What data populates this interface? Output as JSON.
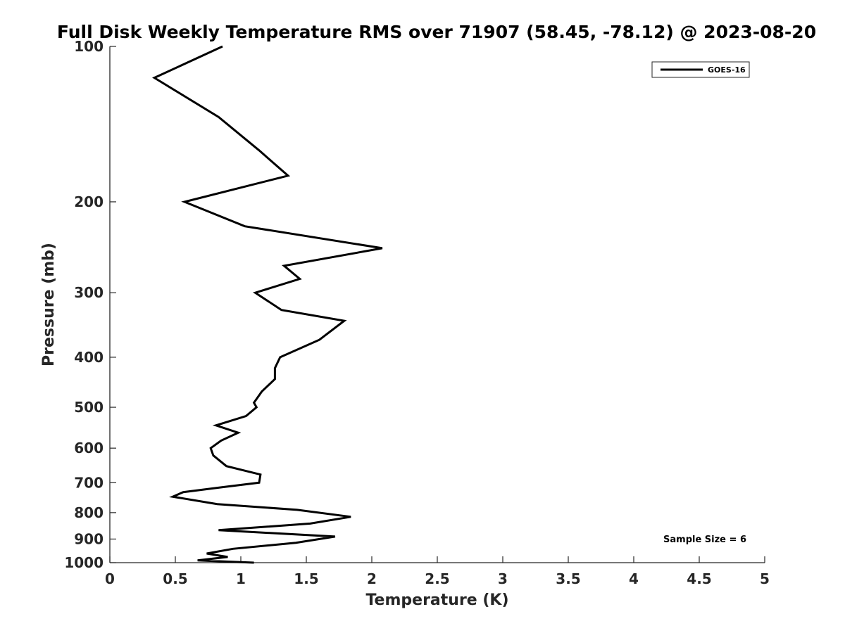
{
  "chart_data": {
    "type": "line",
    "title": "Full Disk Weekly Temperature RMS over 71907 (58.45, -78.12) @ 2023-08-20",
    "xlabel": "Temperature (K)",
    "ylabel": "Pressure (mb)",
    "xlim": [
      0,
      5
    ],
    "ylim": [
      1000,
      100
    ],
    "y_scale": "log",
    "y_reversed": true,
    "x_ticks": [
      "0",
      "0.5",
      "1",
      "1.5",
      "2",
      "2.5",
      "3",
      "3.5",
      "4",
      "4.5",
      "5"
    ],
    "y_ticks": [
      "100",
      "200",
      "300",
      "400",
      "500",
      "600",
      "700",
      "800",
      "900",
      "1000"
    ],
    "grid": false,
    "legend_position": "top-right",
    "annotation": "Sample Size = 6",
    "series": [
      {
        "name": "GOES-16",
        "color": "#000000",
        "x": [
          0.86,
          0.34,
          0.83,
          1.14,
          1.36,
          0.57,
          1.03,
          2.08,
          1.33,
          1.45,
          1.11,
          1.31,
          1.79,
          1.6,
          1.3,
          1.26,
          1.26,
          1.16,
          1.1,
          1.12,
          1.04,
          0.81,
          0.98,
          0.85,
          0.77,
          0.79,
          0.89,
          1.15,
          1.14,
          0.84,
          0.56,
          0.48,
          0.82,
          1.43,
          1.84,
          1.53,
          0.83,
          1.72,
          1.42,
          0.94,
          0.74,
          0.9,
          0.67,
          1.1
        ],
        "y": [
          100,
          115,
          137,
          159,
          178,
          200,
          223,
          246,
          266,
          282,
          300,
          324,
          340,
          370,
          400,
          420,
          441,
          466,
          490,
          500,
          520,
          542,
          560,
          580,
          600,
          620,
          650,
          675,
          700,
          715,
          730,
          745,
          770,
          790,
          815,
          840,
          865,
          890,
          915,
          940,
          960,
          975,
          990,
          1000
        ]
      }
    ]
  }
}
